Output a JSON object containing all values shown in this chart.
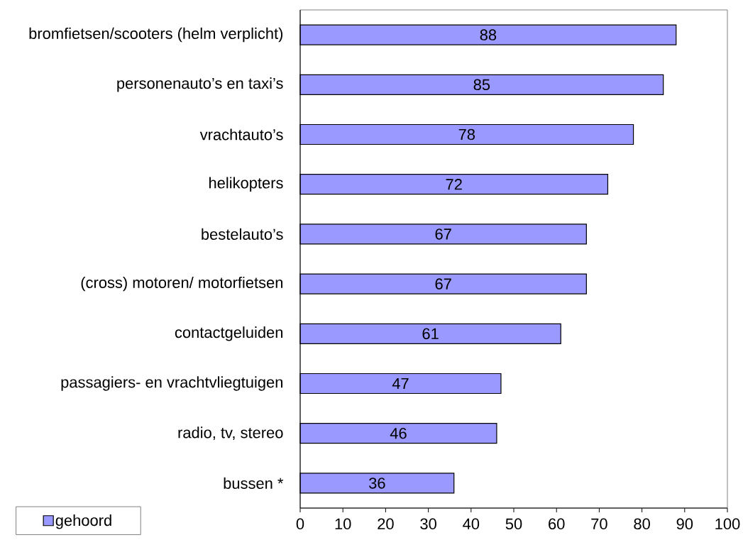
{
  "chart_data": {
    "type": "bar",
    "orientation": "horizontal",
    "categories": [
      "bromfietsen/scooters (helm verplicht)",
      "personenauto’s en taxi’s",
      "vrachtauto’s",
      "helikopters",
      "bestelauto’s",
      "(cross) motoren/ motorfietsen",
      "contactgeluiden",
      "passagiers- en vrachtvliegtuigen",
      "radio, tv, stereo",
      "bussen *"
    ],
    "series": [
      {
        "name": "gehoord",
        "color": "#9999ff",
        "values": [
          88,
          85,
          78,
          72,
          67,
          67,
          61,
          47,
          46,
          36
        ]
      }
    ],
    "xlim": [
      0,
      100
    ],
    "xticks": [
      0,
      10,
      20,
      30,
      40,
      50,
      60,
      70,
      80,
      90,
      100
    ],
    "data_labels": true,
    "legend": "bottom left"
  }
}
